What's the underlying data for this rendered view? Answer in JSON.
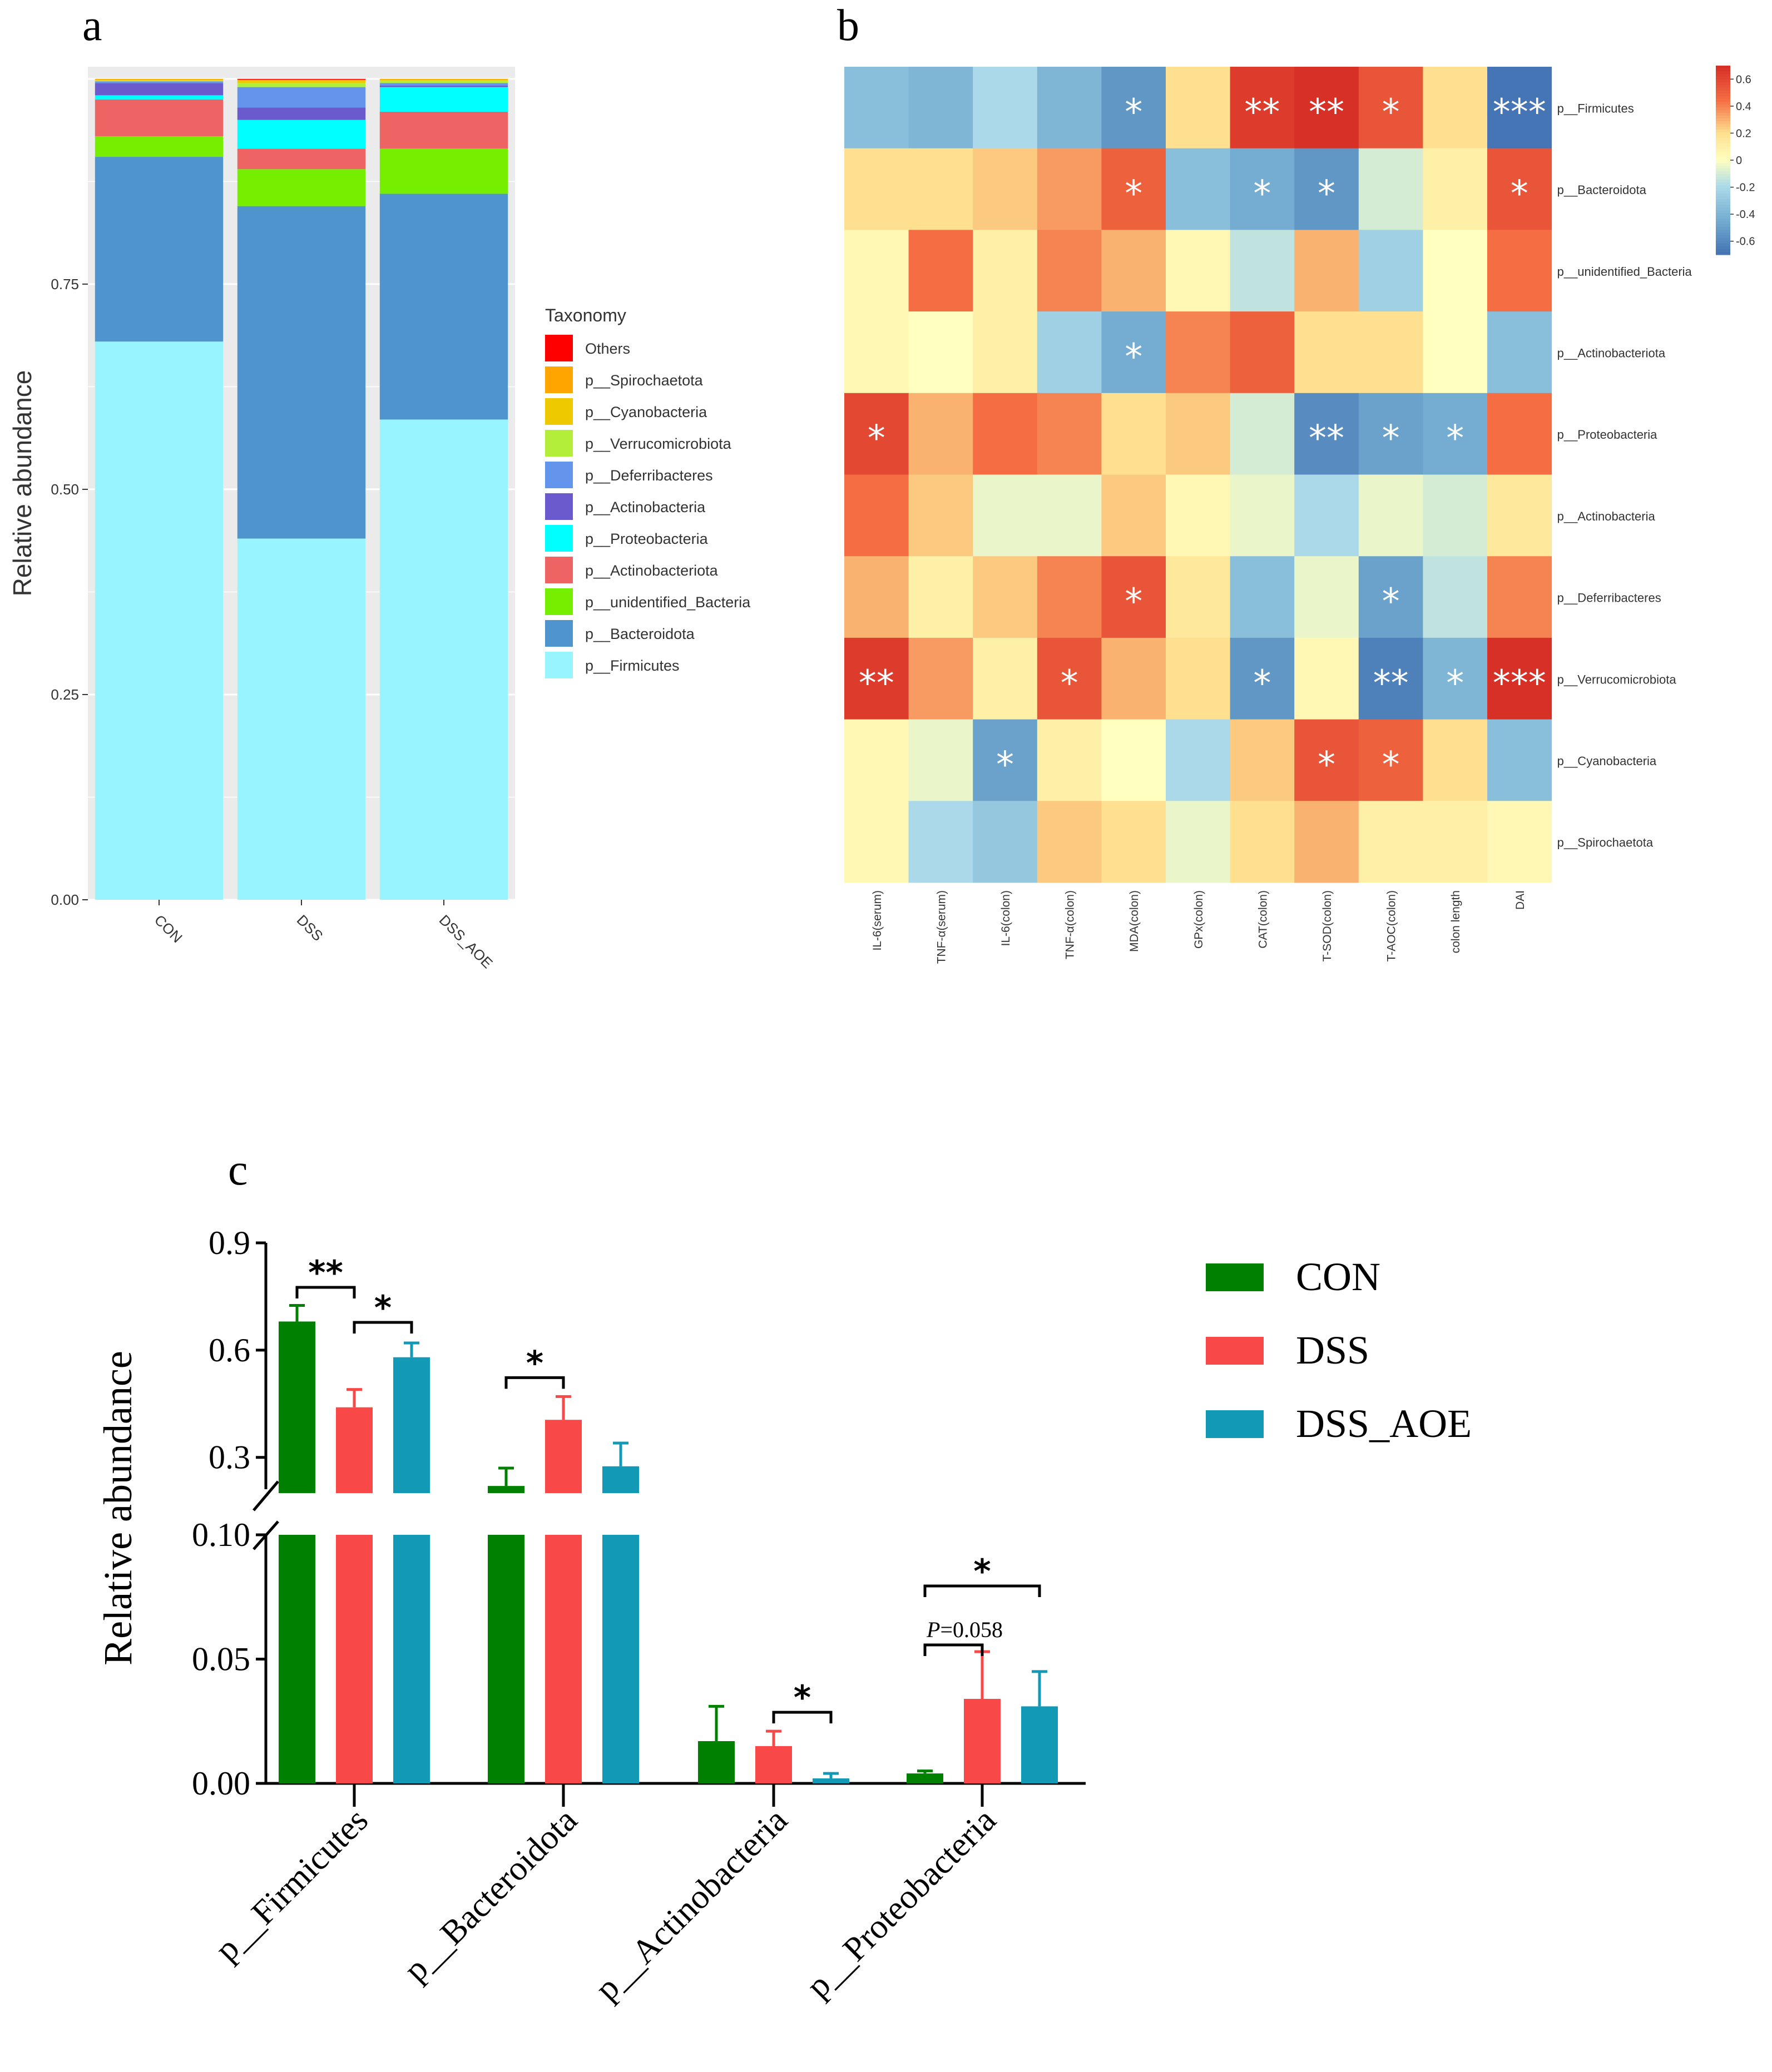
{
  "panel_labels": [
    "a",
    "b",
    "c"
  ],
  "chart_data": [
    {
      "type": "bar",
      "stacked": true,
      "panel": "a",
      "ylabel": "Relative abundance",
      "ylim": [
        0,
        1
      ],
      "yticks": [
        "0.00",
        "0.25",
        "0.50",
        "0.75"
      ],
      "categories": [
        "CON",
        "DSS",
        "DSS_AOE"
      ],
      "legend_title": "Taxonomy",
      "legend": [
        {
          "name": "Others",
          "color": "#FF0000"
        },
        {
          "name": "p__Spirochaetota",
          "color": "#FFA500"
        },
        {
          "name": "p__Cyanobacteria",
          "color": "#EEC900"
        },
        {
          "name": "p__Verrucomicrobiota",
          "color": "#B3EE3A"
        },
        {
          "name": "p__Deferribacteres",
          "color": "#6495ED"
        },
        {
          "name": "p__Actinobacteria",
          "color": "#6A5ACD"
        },
        {
          "name": "p__Proteobacteria",
          "color": "#00FFFF"
        },
        {
          "name": "p__Actinobacteriota",
          "color": "#EE6363"
        },
        {
          "name": "p__unidentified_Bacteria",
          "color": "#76EE00"
        },
        {
          "name": "p__Bacteroidota",
          "color": "#4F94CD"
        },
        {
          "name": "p__Firmicutes",
          "color": "#98F5FF"
        }
      ],
      "series": [
        {
          "name": "p__Firmicutes",
          "values": [
            0.68,
            0.44,
            0.585
          ]
        },
        {
          "name": "p__Bacteroidota",
          "values": [
            0.225,
            0.405,
            0.275
          ]
        },
        {
          "name": "p__unidentified_Bacteria",
          "values": [
            0.025,
            0.045,
            0.055
          ]
        },
        {
          "name": "p__Actinobacteriota",
          "values": [
            0.045,
            0.025,
            0.045
          ]
        },
        {
          "name": "p__Proteobacteria",
          "values": [
            0.005,
            0.035,
            0.03
          ]
        },
        {
          "name": "p__Actinobacteria",
          "values": [
            0.015,
            0.015,
            0.002
          ]
        },
        {
          "name": "p__Deferribacteres",
          "values": [
            0.002,
            0.025,
            0.003
          ]
        },
        {
          "name": "p__Verrucomicrobiota",
          "values": [
            0.001,
            0.005,
            0.003
          ]
        },
        {
          "name": "p__Cyanobacteria",
          "values": [
            0.001,
            0.003,
            0.001
          ]
        },
        {
          "name": "p__Spirochaetota",
          "values": [
            0.001,
            0.001,
            0.001
          ]
        },
        {
          "name": "Others",
          "values": [
            0.0,
            0.001,
            0.0
          ]
        }
      ]
    },
    {
      "type": "heatmap",
      "panel": "b",
      "rows": [
        "p__Firmicutes",
        "p__Bacteroidota",
        "p__unidentified_Bacteria",
        "p__Actinobacteriota",
        "p__Proteobacteria",
        "p__Actinobacteria",
        "p__Deferribacteres",
        "p__Verrucomicrobiota",
        "p__Cyanobacteria",
        "p__Spirochaetota"
      ],
      "columns": [
        "IL-6(serum)",
        "TNF-α(serum)",
        "IL-6(colon)",
        "TNF-α(colon)",
        "MDA(colon)",
        "GPx(colon)",
        "CAT(colon)",
        "T-SOD(colon)",
        "T-AOC(colon)",
        "colon length",
        "DAI"
      ],
      "values": [
        [
          -0.35,
          -0.4,
          -0.2,
          -0.4,
          -0.55,
          0.2,
          0.65,
          0.7,
          0.55,
          0.2,
          -0.7
        ],
        [
          0.2,
          0.2,
          0.25,
          0.35,
          0.5,
          -0.35,
          -0.45,
          -0.55,
          -0.1,
          0.1,
          0.55
        ],
        [
          0.05,
          0.45,
          0.1,
          0.4,
          0.3,
          0.05,
          -0.15,
          0.3,
          -0.25,
          0.0,
          0.45
        ],
        [
          0.05,
          0.0,
          0.1,
          -0.25,
          -0.45,
          0.4,
          0.5,
          0.2,
          0.2,
          0.0,
          -0.35
        ],
        [
          0.6,
          0.3,
          0.45,
          0.4,
          0.2,
          0.25,
          -0.1,
          -0.6,
          -0.5,
          -0.45,
          0.45
        ],
        [
          0.45,
          0.25,
          -0.05,
          -0.05,
          0.25,
          0.05,
          -0.05,
          -0.2,
          -0.05,
          -0.1,
          0.15
        ],
        [
          0.3,
          0.1,
          0.25,
          0.4,
          0.55,
          0.15,
          -0.35,
          -0.05,
          -0.5,
          -0.15,
          0.4
        ],
        [
          0.65,
          0.35,
          0.1,
          0.55,
          0.3,
          0.2,
          -0.55,
          0.05,
          -0.65,
          -0.4,
          0.7
        ],
        [
          0.05,
          -0.05,
          -0.5,
          0.1,
          0.0,
          -0.2,
          0.25,
          0.55,
          0.5,
          0.2,
          -0.35
        ],
        [
          0.05,
          -0.2,
          -0.3,
          0.25,
          0.2,
          -0.05,
          0.2,
          0.3,
          0.1,
          0.1,
          0.05
        ]
      ],
      "annotations": [
        [
          null,
          null,
          null,
          null,
          "*",
          null,
          "**",
          "**",
          "*",
          null,
          "***"
        ],
        [
          null,
          null,
          null,
          null,
          "*",
          null,
          "*",
          "*",
          null,
          null,
          "*"
        ],
        [
          null,
          null,
          null,
          null,
          null,
          null,
          null,
          null,
          null,
          null,
          null
        ],
        [
          null,
          null,
          null,
          null,
          "*",
          null,
          null,
          null,
          null,
          null,
          null
        ],
        [
          "*",
          null,
          null,
          null,
          null,
          null,
          null,
          "**",
          "*",
          "*",
          null
        ],
        [
          null,
          null,
          null,
          null,
          null,
          null,
          null,
          null,
          null,
          null,
          null
        ],
        [
          null,
          null,
          null,
          null,
          "*",
          null,
          null,
          null,
          "*",
          null,
          null
        ],
        [
          "**",
          null,
          null,
          "*",
          null,
          null,
          "*",
          null,
          "**",
          "*",
          "***"
        ],
        [
          null,
          null,
          "*",
          null,
          null,
          null,
          null,
          "*",
          "*",
          null,
          null
        ],
        [
          null,
          null,
          null,
          null,
          null,
          null,
          null,
          null,
          null,
          null,
          null
        ]
      ],
      "colorbar_ticks": [
        "0.6",
        "0.4",
        "0.2",
        "0",
        "-0.2",
        "-0.4",
        "-0.6"
      ],
      "color_range": [
        -0.7,
        0.7
      ]
    },
    {
      "type": "bar",
      "panel": "c",
      "ylabel": "Relative abundance",
      "broken_axis": true,
      "upper_ticks": [
        "0.9",
        "0.6",
        "0.3"
      ],
      "lower_ticks": [
        "0.10",
        "0.05",
        "0.00"
      ],
      "upper_range": [
        0.2,
        0.9
      ],
      "lower_range": [
        0,
        0.1
      ],
      "categories": [
        "p__Firmicutes",
        "p__Bacteroidota",
        "p__Actinobacteria",
        "p__Proteobacteria"
      ],
      "series": [
        {
          "name": "CON",
          "color": "#008000",
          "values": [
            0.68,
            0.22,
            0.017,
            0.004
          ],
          "errors": [
            0.045,
            0.05,
            0.014,
            0.001
          ]
        },
        {
          "name": "DSS",
          "color": "#F94848",
          "values": [
            0.44,
            0.405,
            0.015,
            0.034
          ],
          "errors": [
            0.05,
            0.065,
            0.006,
            0.019
          ]
        },
        {
          "name": "DSS_AOE",
          "color": "#1299B6",
          "values": [
            0.58,
            0.275,
            0.002,
            0.031
          ],
          "errors": [
            0.04,
            0.065,
            0.002,
            0.014
          ]
        }
      ],
      "significance": [
        {
          "category": 0,
          "from": 0,
          "to": 1,
          "label": "**"
        },
        {
          "category": 0,
          "from": 1,
          "to": 2,
          "label": "*"
        },
        {
          "category": 1,
          "from": 0,
          "to": 1,
          "label": "*"
        },
        {
          "category": 2,
          "from": 1,
          "to": 2,
          "label": "*"
        },
        {
          "category": 3,
          "from": 0,
          "to": 1,
          "label": "=0.058",
          "prefix": "P"
        },
        {
          "category": 3,
          "from": 0,
          "to": 2,
          "label": "*"
        }
      ]
    }
  ]
}
